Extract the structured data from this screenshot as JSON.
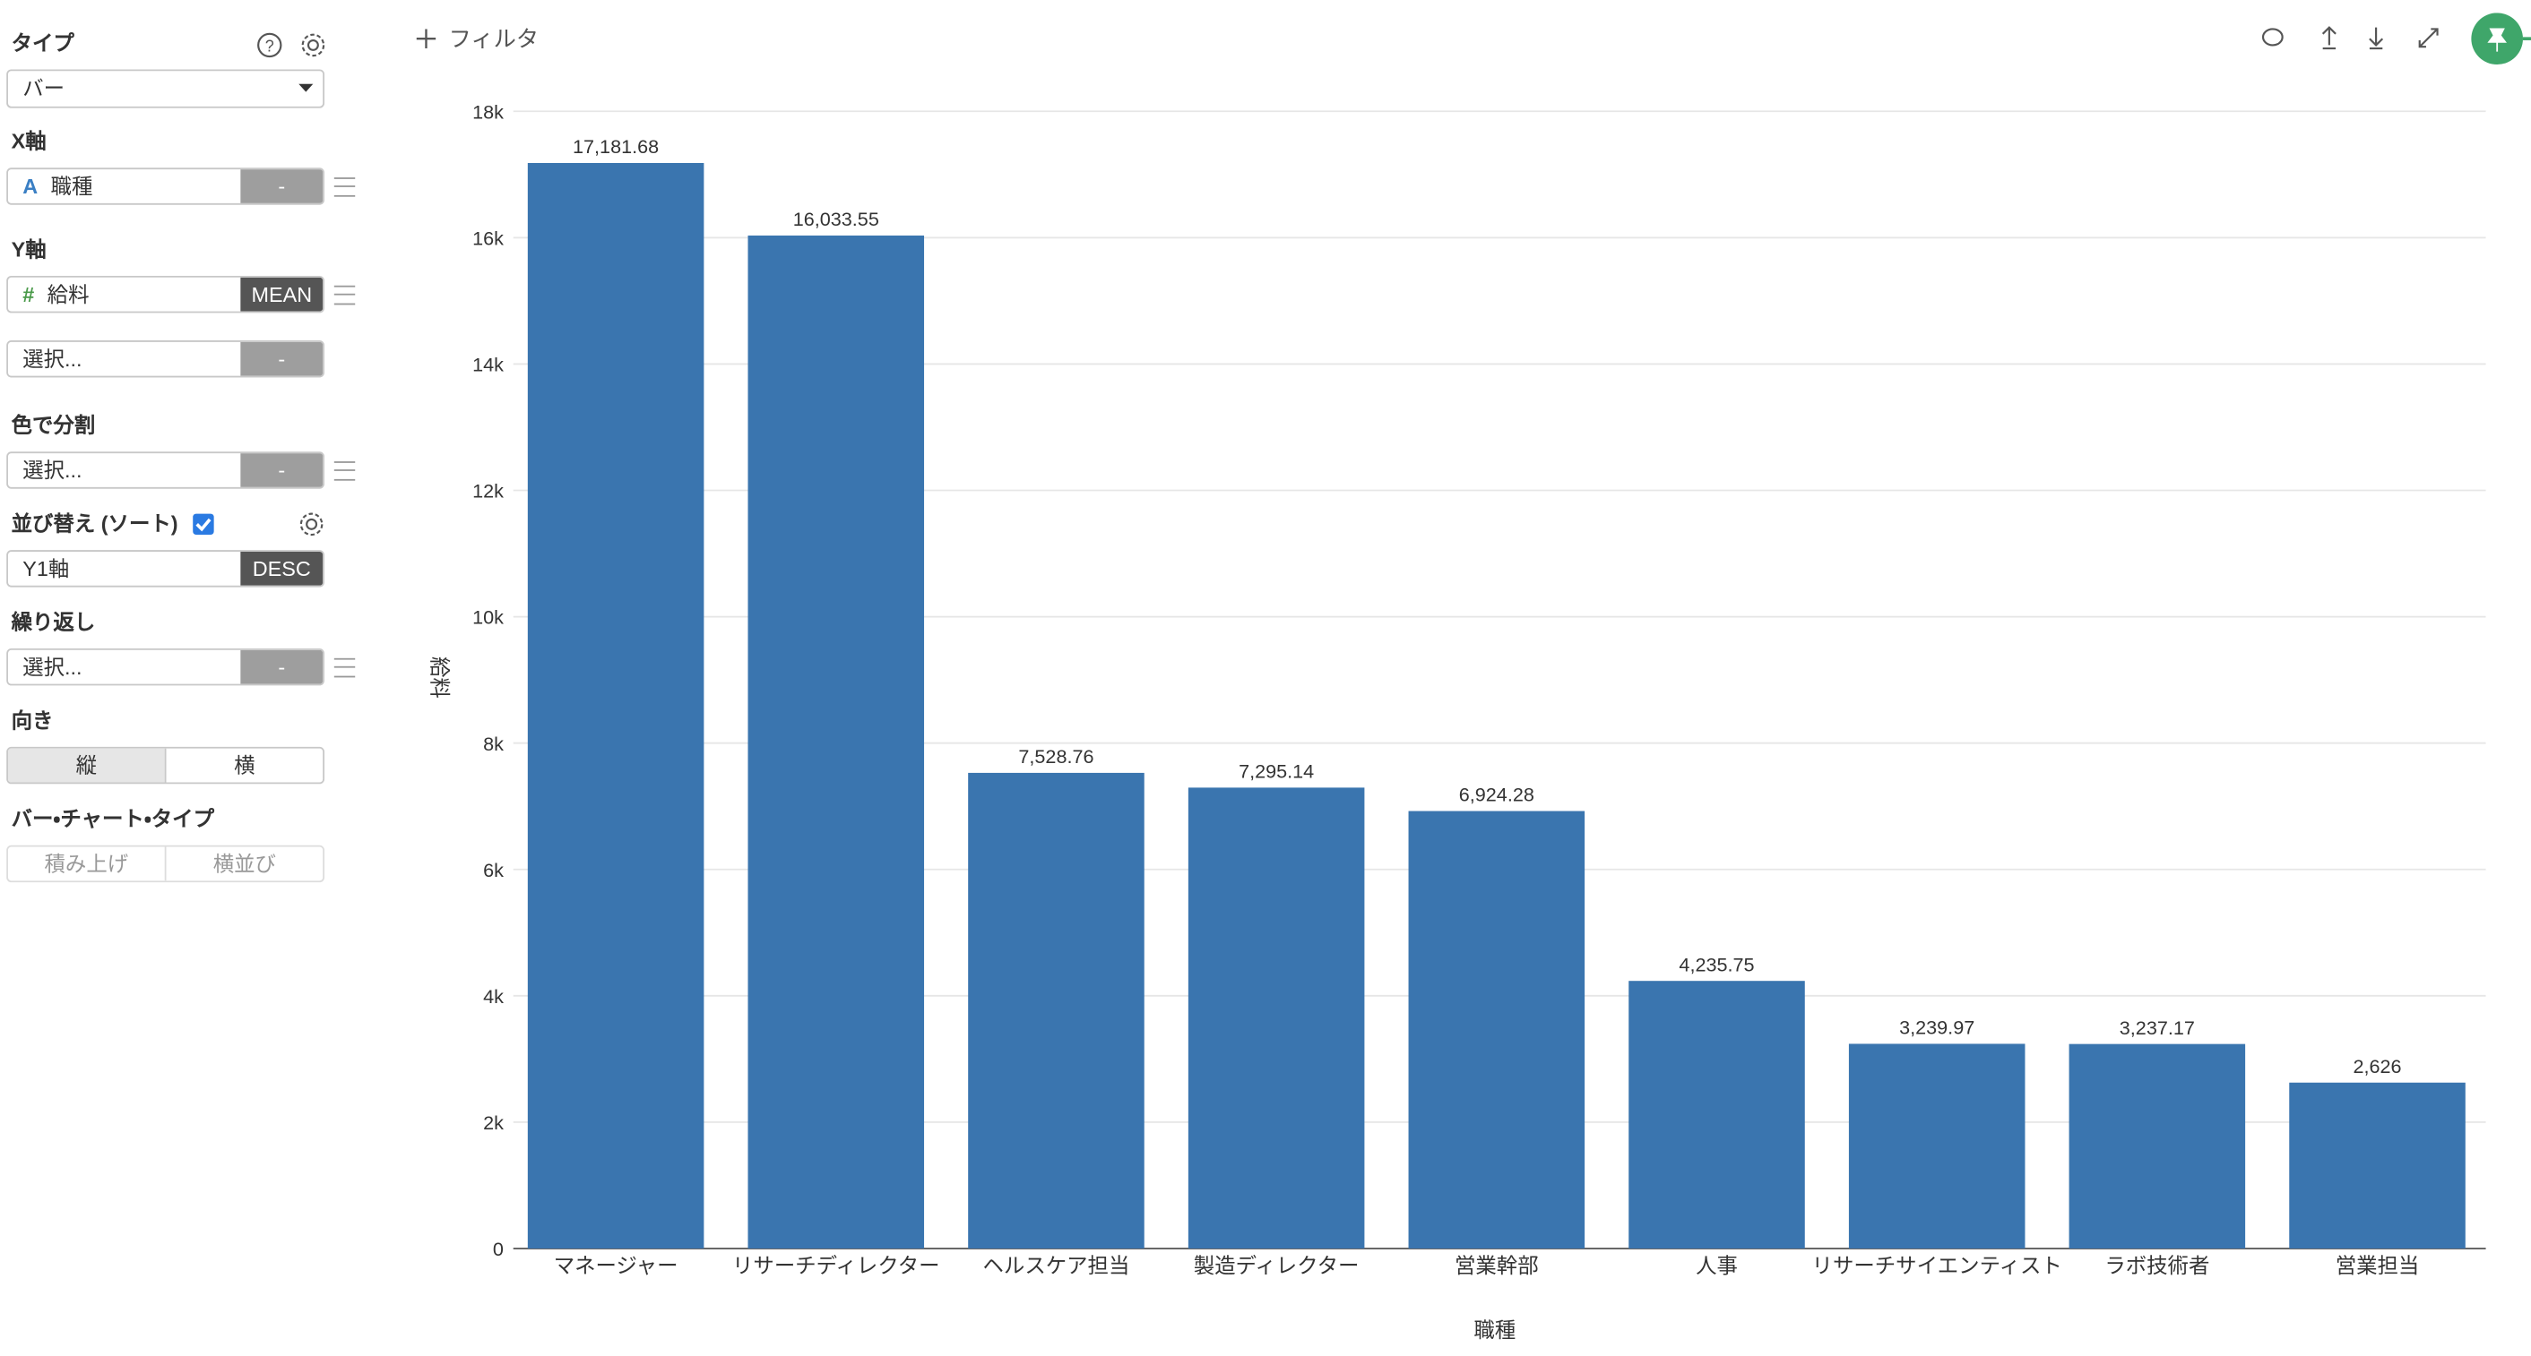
{
  "sidebar": {
    "type_label": "タイプ",
    "type_value": "バー",
    "x_axis_label": "X軸",
    "x_field": {
      "icon": "A",
      "name": "職種",
      "agg": "-"
    },
    "y_axis_label": "Y軸",
    "y_field": {
      "icon": "#",
      "name": "給料",
      "agg": "MEAN"
    },
    "y_field2": {
      "name": "選択...",
      "agg": "-"
    },
    "color_label": "色で分割",
    "color_field": {
      "name": "選択...",
      "agg": "-"
    },
    "sort_label": "並び替え (ソート)",
    "sort_field": {
      "name": "Y1軸",
      "agg": "DESC"
    },
    "repeat_label": "繰り返し",
    "repeat_field": {
      "name": "選択...",
      "agg": "-"
    },
    "orientation_label": "向き",
    "orientation_options": [
      "縦",
      "横"
    ],
    "bar_type_label": "バー・チャート・タイプ",
    "bar_type_options": [
      "積み上げ",
      "横並び"
    ]
  },
  "toolbar": {
    "filter": "フィルタ"
  },
  "chart_data": {
    "type": "bar",
    "categories": [
      "マネージャー",
      "リサーチディレクター",
      "ヘルスケア担当",
      "製造ディレクター",
      "営業幹部",
      "人事",
      "リサーチサイエンティスト",
      "ラボ技術者",
      "営業担当"
    ],
    "values": [
      17181.68,
      16033.55,
      7528.76,
      7295.14,
      6924.28,
      4235.75,
      3239.97,
      3237.17,
      2626
    ],
    "value_labels": [
      "17,181.68",
      "16,033.55",
      "7,528.76",
      "7,295.14",
      "6,924.28",
      "4,235.75",
      "3,239.97",
      "3,237.17",
      "2,626"
    ],
    "color": "#3a75af",
    "x_label": "職種",
    "y_label": "給料",
    "ylim": [
      0,
      18000
    ],
    "yticks": [
      0,
      {
        "value": 2000,
        "label": "2k"
      },
      {
        "value": 4000,
        "label": "4k"
      },
      {
        "value": 6000,
        "label": "6k"
      },
      {
        "value": 8000,
        "label": "8k"
      },
      {
        "value": 10000,
        "label": "10k"
      },
      {
        "value": 12000,
        "label": "12k"
      },
      {
        "value": 14000,
        "label": "14k"
      },
      {
        "value": 16000,
        "label": "16k"
      },
      {
        "value": 18000,
        "label": "18k"
      }
    ],
    "grid": true
  }
}
